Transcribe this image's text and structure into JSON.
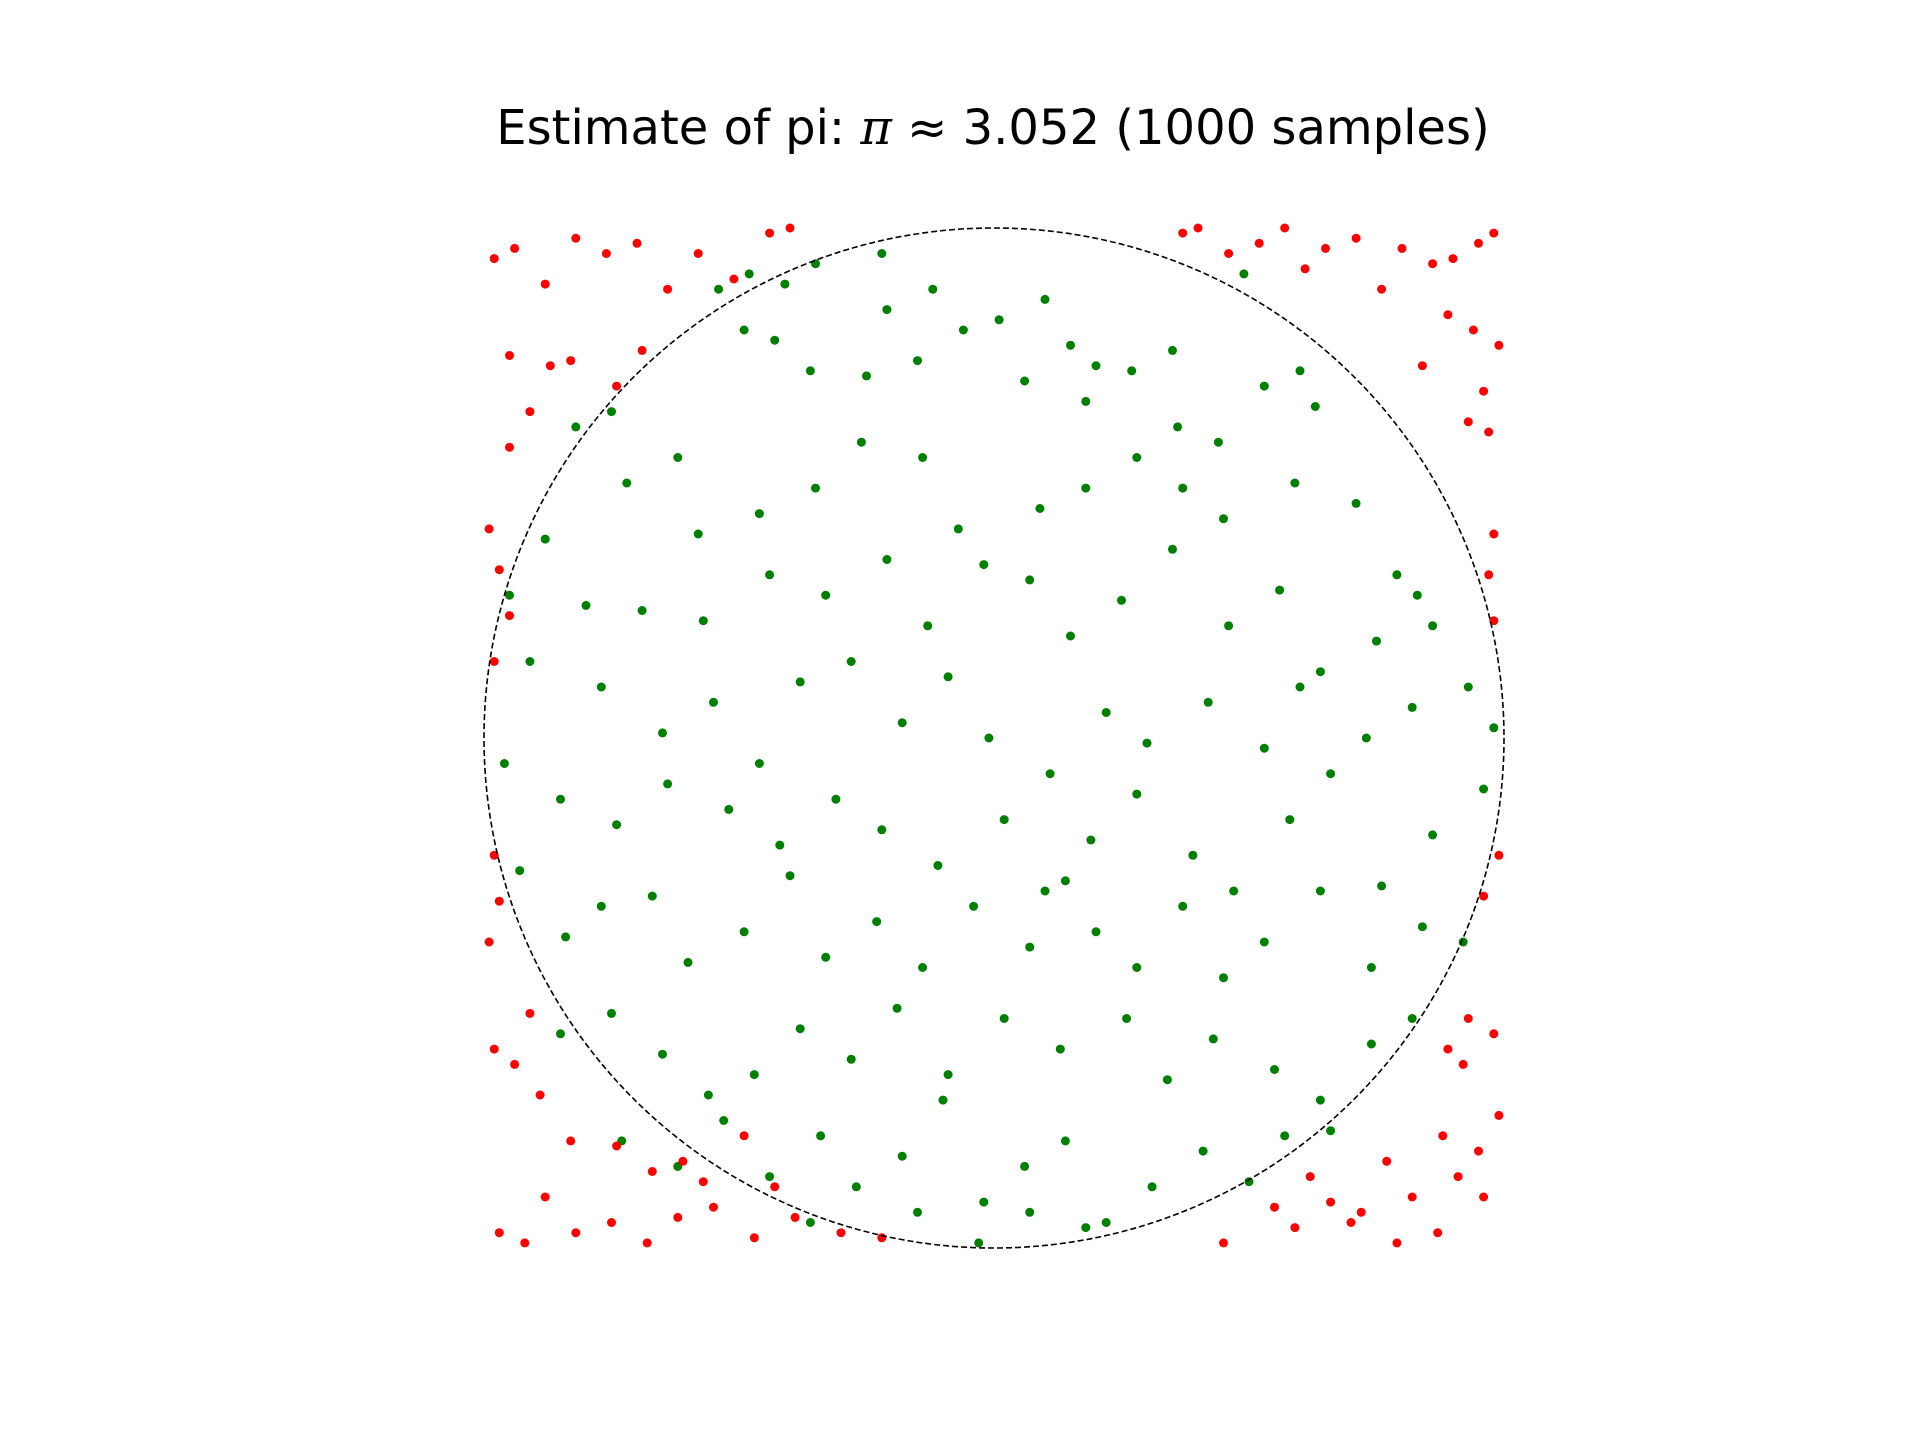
{
  "title": {
    "prefix": "Estimate of pi: ",
    "pi_symbol": "π",
    "approx": " ≈ ",
    "value": "3.052",
    "suffix": " (1000 samples)"
  },
  "colors": {
    "inside": "#008000",
    "outside": "#ff0000",
    "boundary": "#000000"
  },
  "chart_data": {
    "type": "scatter",
    "samples": 1000,
    "pi_estimate": 3.052,
    "xlim": [
      -1,
      1
    ],
    "ylim": [
      -1,
      1
    ],
    "aspect": "equal",
    "axes_visible": false,
    "grid": false,
    "legend": "none",
    "boundary": {
      "shape": "unit circle",
      "center": [
        0,
        0
      ],
      "radius": 1,
      "linestyle": "dashed"
    },
    "series": [
      {
        "category": "inside",
        "points": [
          [
            -0.82,
            0.61
          ],
          [
            -0.75,
            0.64
          ],
          [
            -0.54,
            0.88
          ],
          [
            -0.48,
            0.91
          ],
          [
            -0.41,
            0.89
          ],
          [
            -0.35,
            0.93
          ],
          [
            -0.22,
            0.95
          ],
          [
            -0.21,
            0.84
          ],
          [
            -0.12,
            0.88
          ],
          [
            -0.06,
            0.8
          ],
          [
            0.01,
            0.82
          ],
          [
            0.1,
            0.86
          ],
          [
            0.15,
            0.77
          ],
          [
            0.2,
            0.73
          ],
          [
            0.35,
            0.76
          ],
          [
            0.49,
            0.91
          ],
          [
            -0.49,
            0.8
          ],
          [
            -0.43,
            0.78
          ],
          [
            -0.36,
            0.72
          ],
          [
            -0.25,
            0.71
          ],
          [
            -0.15,
            0.74
          ],
          [
            0.06,
            0.7
          ],
          [
            0.18,
            0.66
          ],
          [
            0.27,
            0.72
          ],
          [
            0.36,
            0.61
          ],
          [
            0.44,
            0.58
          ],
          [
            0.53,
            0.69
          ],
          [
            0.6,
            0.72
          ],
          [
            0.63,
            0.65
          ],
          [
            -0.72,
            0.5
          ],
          [
            -0.62,
            0.55
          ],
          [
            -0.58,
            0.4
          ],
          [
            -0.46,
            0.44
          ],
          [
            -0.35,
            0.49
          ],
          [
            -0.26,
            0.58
          ],
          [
            -0.14,
            0.55
          ],
          [
            -0.07,
            0.41
          ],
          [
            0.09,
            0.45
          ],
          [
            0.18,
            0.49
          ],
          [
            0.28,
            0.55
          ],
          [
            0.37,
            0.49
          ],
          [
            0.45,
            0.43
          ],
          [
            0.59,
            0.5
          ],
          [
            0.71,
            0.46
          ],
          [
            0.79,
            0.32
          ],
          [
            0.83,
            0.28
          ],
          [
            -0.88,
            0.39
          ],
          [
            -0.8,
            0.26
          ],
          [
            -0.69,
            0.25
          ],
          [
            -0.57,
            0.23
          ],
          [
            -0.44,
            0.32
          ],
          [
            -0.33,
            0.28
          ],
          [
            -0.21,
            0.35
          ],
          [
            -0.13,
            0.22
          ],
          [
            -0.02,
            0.34
          ],
          [
            0.07,
            0.31
          ],
          [
            0.15,
            0.2
          ],
          [
            0.25,
            0.27
          ],
          [
            0.35,
            0.37
          ],
          [
            0.46,
            0.22
          ],
          [
            0.56,
            0.29
          ],
          [
            0.64,
            0.13
          ],
          [
            0.75,
            0.19
          ],
          [
            0.86,
            0.22
          ],
          [
            -0.95,
            0.28
          ],
          [
            -0.91,
            0.15
          ],
          [
            -0.77,
            0.1
          ],
          [
            -0.65,
            0.01
          ],
          [
            -0.55,
            0.07
          ],
          [
            -0.46,
            -0.05
          ],
          [
            -0.38,
            0.11
          ],
          [
            -0.28,
            0.15
          ],
          [
            -0.18,
            0.03
          ],
          [
            -0.09,
            0.12
          ],
          [
            -0.01,
            0.0
          ],
          [
            0.11,
            -0.07
          ],
          [
            0.22,
            0.05
          ],
          [
            0.3,
            -0.01
          ],
          [
            0.42,
            0.07
          ],
          [
            0.53,
            -0.02
          ],
          [
            0.6,
            0.1
          ],
          [
            0.73,
            0.0
          ],
          [
            0.82,
            0.06
          ],
          [
            0.93,
            0.1
          ],
          [
            0.98,
            0.02
          ],
          [
            -0.96,
            -0.05
          ],
          [
            -0.85,
            -0.12
          ],
          [
            -0.74,
            -0.17
          ],
          [
            -0.64,
            -0.09
          ],
          [
            -0.52,
            -0.14
          ],
          [
            -0.42,
            -0.21
          ],
          [
            -0.31,
            -0.12
          ],
          [
            -0.22,
            -0.18
          ],
          [
            -0.11,
            -0.25
          ],
          [
            0.02,
            -0.16
          ],
          [
            0.1,
            -0.3
          ],
          [
            0.19,
            -0.2
          ],
          [
            0.28,
            -0.11
          ],
          [
            0.39,
            -0.23
          ],
          [
            0.47,
            -0.3
          ],
          [
            0.58,
            -0.16
          ],
          [
            0.66,
            -0.07
          ],
          [
            0.76,
            -0.29
          ],
          [
            0.86,
            -0.19
          ],
          [
            0.96,
            -0.1
          ],
          [
            -0.93,
            -0.26
          ],
          [
            -0.84,
            -0.39
          ],
          [
            -0.77,
            -0.33
          ],
          [
            -0.67,
            -0.31
          ],
          [
            -0.6,
            -0.44
          ],
          [
            -0.49,
            -0.38
          ],
          [
            -0.4,
            -0.27
          ],
          [
            -0.33,
            -0.43
          ],
          [
            -0.23,
            -0.36
          ],
          [
            -0.14,
            -0.45
          ],
          [
            -0.04,
            -0.33
          ],
          [
            0.07,
            -0.41
          ],
          [
            0.14,
            -0.28
          ],
          [
            0.2,
            -0.38
          ],
          [
            0.28,
            -0.45
          ],
          [
            0.37,
            -0.33
          ],
          [
            0.45,
            -0.47
          ],
          [
            0.53,
            -0.4
          ],
          [
            0.64,
            -0.3
          ],
          [
            0.74,
            -0.45
          ],
          [
            0.84,
            -0.37
          ],
          [
            0.92,
            -0.4
          ],
          [
            -0.85,
            -0.58
          ],
          [
            -0.75,
            -0.54
          ],
          [
            -0.65,
            -0.62
          ],
          [
            -0.56,
            -0.7
          ],
          [
            -0.47,
            -0.66
          ],
          [
            -0.38,
            -0.57
          ],
          [
            -0.28,
            -0.63
          ],
          [
            -0.19,
            -0.53
          ],
          [
            -0.09,
            -0.66
          ],
          [
            0.02,
            -0.55
          ],
          [
            0.13,
            -0.61
          ],
          [
            0.26,
            -0.55
          ],
          [
            0.34,
            -0.67
          ],
          [
            0.43,
            -0.59
          ],
          [
            0.55,
            -0.65
          ],
          [
            0.64,
            -0.71
          ],
          [
            0.74,
            -0.6
          ],
          [
            0.82,
            -0.55
          ],
          [
            -0.73,
            -0.79
          ],
          [
            -0.62,
            -0.84
          ],
          [
            -0.53,
            -0.75
          ],
          [
            -0.44,
            -0.86
          ],
          [
            -0.34,
            -0.78
          ],
          [
            -0.27,
            -0.88
          ],
          [
            -0.18,
            -0.82
          ],
          [
            -0.1,
            -0.71
          ],
          [
            -0.02,
            -0.91
          ],
          [
            0.06,
            -0.84
          ],
          [
            0.14,
            -0.79
          ],
          [
            0.22,
            -0.95
          ],
          [
            0.31,
            -0.88
          ],
          [
            0.41,
            -0.81
          ],
          [
            0.5,
            -0.87
          ],
          [
            0.57,
            -0.78
          ],
          [
            0.66,
            -0.77
          ],
          [
            -0.36,
            -0.95
          ],
          [
            -0.15,
            -0.93
          ],
          [
            -0.03,
            -0.99
          ],
          [
            0.07,
            -0.93
          ],
          [
            0.18,
            -0.96
          ]
        ]
      },
      {
        "category": "outside",
        "points": [
          [
            -0.98,
            0.94
          ],
          [
            -0.94,
            0.96
          ],
          [
            -0.88,
            0.89
          ],
          [
            -0.82,
            0.98
          ],
          [
            -0.76,
            0.95
          ],
          [
            -0.7,
            0.97
          ],
          [
            -0.64,
            0.88
          ],
          [
            -0.58,
            0.95
          ],
          [
            -0.51,
            0.9
          ],
          [
            -0.44,
            0.99
          ],
          [
            -0.4,
            1.0
          ],
          [
            -0.83,
            0.74
          ],
          [
            -0.74,
            0.69
          ],
          [
            -0.69,
            0.76
          ],
          [
            -0.95,
            0.75
          ],
          [
            -0.91,
            0.64
          ],
          [
            -0.87,
            0.73
          ],
          [
            -0.95,
            0.57
          ],
          [
            0.37,
            0.99
          ],
          [
            0.4,
            1.0
          ],
          [
            0.46,
            0.95
          ],
          [
            0.52,
            0.97
          ],
          [
            0.57,
            1.0
          ],
          [
            0.61,
            0.92
          ],
          [
            0.65,
            0.96
          ],
          [
            0.71,
            0.98
          ],
          [
            0.76,
            0.88
          ],
          [
            0.8,
            0.96
          ],
          [
            0.86,
            0.93
          ],
          [
            0.9,
            0.94
          ],
          [
            0.95,
            0.97
          ],
          [
            0.98,
            0.99
          ],
          [
            0.89,
            0.83
          ],
          [
            0.94,
            0.8
          ],
          [
            0.99,
            0.77
          ],
          [
            0.84,
            0.73
          ],
          [
            0.93,
            0.62
          ],
          [
            0.97,
            0.6
          ],
          [
            0.96,
            0.68
          ],
          [
            -0.98,
            0.15
          ],
          [
            -0.95,
            0.24
          ],
          [
            -0.97,
            0.33
          ],
          [
            -0.99,
            0.41
          ],
          [
            0.98,
            0.4
          ],
          [
            0.97,
            0.32
          ],
          [
            0.98,
            0.23
          ],
          [
            -0.98,
            -0.61
          ],
          [
            -0.94,
            -0.64
          ],
          [
            -0.91,
            -0.54
          ],
          [
            -0.89,
            -0.7
          ],
          [
            -0.83,
            -0.79
          ],
          [
            -0.74,
            -0.8
          ],
          [
            -0.67,
            -0.85
          ],
          [
            -0.61,
            -0.83
          ],
          [
            -0.57,
            -0.87
          ],
          [
            -0.49,
            -0.78
          ],
          [
            -0.43,
            -0.88
          ],
          [
            -0.39,
            -0.94
          ],
          [
            -0.3,
            -0.97
          ],
          [
            -0.22,
            -0.98
          ],
          [
            -0.97,
            -0.97
          ],
          [
            -0.92,
            -0.99
          ],
          [
            -0.88,
            -0.9
          ],
          [
            -0.82,
            -0.97
          ],
          [
            -0.75,
            -0.95
          ],
          [
            -0.68,
            -0.99
          ],
          [
            -0.62,
            -0.94
          ],
          [
            -0.55,
            -0.92
          ],
          [
            -0.47,
            -0.98
          ],
          [
            -0.98,
            -0.23
          ],
          [
            -0.97,
            -0.32
          ],
          [
            -0.99,
            -0.4
          ],
          [
            0.99,
            -0.23
          ],
          [
            0.96,
            -0.31
          ],
          [
            0.45,
            -0.99
          ],
          [
            0.55,
            -0.92
          ],
          [
            0.62,
            -0.86
          ],
          [
            0.7,
            -0.95
          ],
          [
            0.77,
            -0.83
          ],
          [
            0.82,
            -0.9
          ],
          [
            0.88,
            -0.78
          ],
          [
            0.91,
            -0.86
          ],
          [
            0.95,
            -0.81
          ],
          [
            0.99,
            -0.74
          ],
          [
            0.96,
            -0.9
          ],
          [
            0.87,
            -0.97
          ],
          [
            0.79,
            -0.99
          ],
          [
            0.72,
            -0.93
          ],
          [
            0.66,
            -0.91
          ],
          [
            0.59,
            -0.96
          ],
          [
            0.92,
            -0.64
          ],
          [
            0.98,
            -0.58
          ],
          [
            0.93,
            -0.55
          ],
          [
            0.89,
            -0.61
          ]
        ]
      }
    ]
  }
}
